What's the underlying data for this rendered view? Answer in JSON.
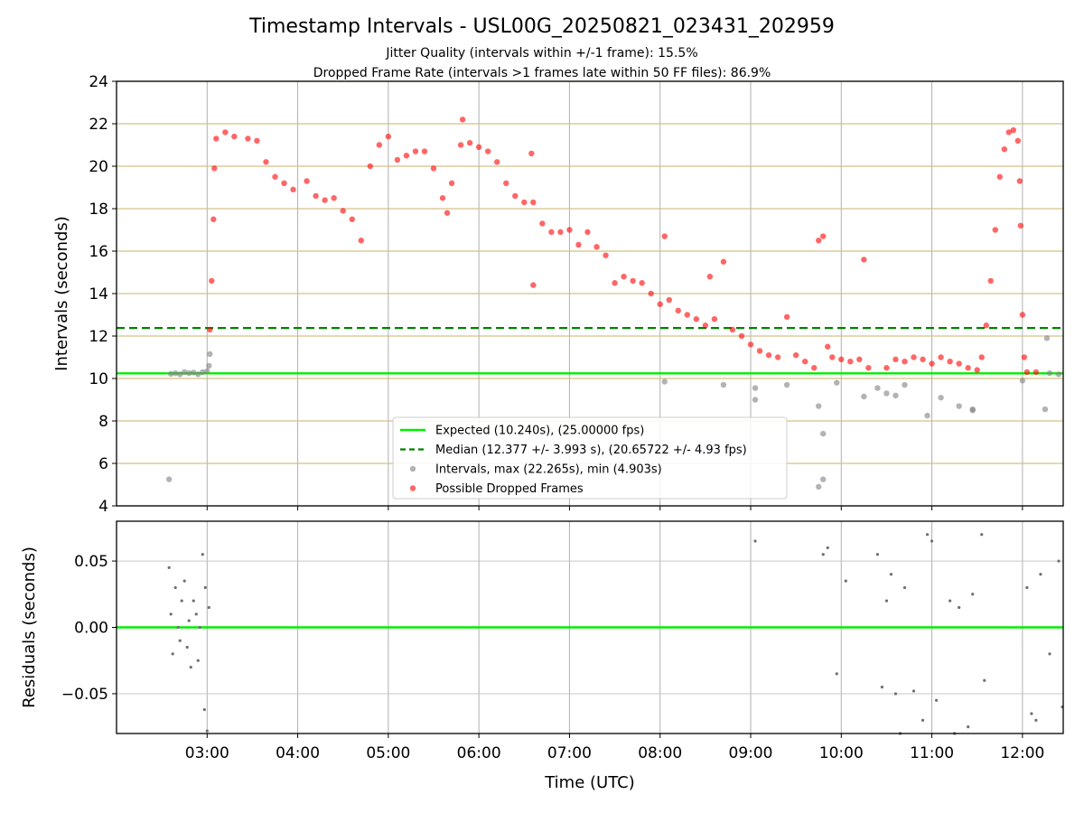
{
  "chart_data": [
    {
      "type": "scatter",
      "title": "Timestamp Intervals - USL00G_20250821_023431_202959",
      "subtitle_lines": [
        "Jitter Quality (intervals within +/-1 frame): 15.5%",
        "Dropped Frame Rate (intervals >1 frames late within 50 FF files): 86.9%"
      ],
      "ylabel": "Intervals (seconds)",
      "xlim_hours": [
        2.0,
        12.45
      ],
      "ylim": [
        4,
        24
      ],
      "yticks": [
        4,
        6,
        8,
        10,
        12,
        14,
        16,
        18,
        20,
        22,
        24
      ],
      "grid": true,
      "expected_value": 10.24,
      "median_value": 12.377,
      "legend_position": "lower center",
      "legend": [
        "Expected (10.240s), (25.00000 fps)",
        "Median (12.377 +/- 3.993 s), (20.65722 +/- 4.93 fps)",
        "Intervals, max (22.265s), min (4.903s)",
        "Possible Dropped Frames"
      ],
      "colors": {
        "expected": "#00ee00",
        "median": "#008000",
        "intervals": "#808080",
        "dropped": "#ff0000",
        "gridline_y": "#d4c088"
      },
      "series": [
        {
          "name": "Intervals, max (22.265s), min (4.903s)",
          "points": [
            [
              2.58,
              5.25
            ],
            [
              2.6,
              10.22
            ],
            [
              2.65,
              10.25
            ],
            [
              2.7,
              10.2
            ],
            [
              2.75,
              10.3
            ],
            [
              2.8,
              10.25
            ],
            [
              2.85,
              10.28
            ],
            [
              2.9,
              10.2
            ],
            [
              2.95,
              10.3
            ],
            [
              3.0,
              10.35
            ],
            [
              3.02,
              10.6
            ],
            [
              3.03,
              11.15
            ],
            [
              8.05,
              9.85
            ],
            [
              8.7,
              9.7
            ],
            [
              9.05,
              9.0
            ],
            [
              9.05,
              9.55
            ],
            [
              9.4,
              9.7
            ],
            [
              9.75,
              4.9
            ],
            [
              9.8,
              5.25
            ],
            [
              9.8,
              7.4
            ],
            [
              9.75,
              8.7
            ],
            [
              9.95,
              9.8
            ],
            [
              10.25,
              9.15
            ],
            [
              10.4,
              9.55
            ],
            [
              10.5,
              9.3
            ],
            [
              10.6,
              9.2
            ],
            [
              10.7,
              9.7
            ],
            [
              10.95,
              8.25
            ],
            [
              11.1,
              9.1
            ],
            [
              11.3,
              8.7
            ],
            [
              11.45,
              8.5
            ],
            [
              11.45,
              8.55
            ],
            [
              12.0,
              9.9
            ],
            [
              12.25,
              8.55
            ],
            [
              12.27,
              11.9
            ],
            [
              12.3,
              10.25
            ],
            [
              12.4,
              10.2
            ]
          ]
        },
        {
          "name": "Possible Dropped Frames",
          "points": [
            [
              3.03,
              12.3
            ],
            [
              3.05,
              14.6
            ],
            [
              3.07,
              17.5
            ],
            [
              3.08,
              19.9
            ],
            [
              3.1,
              21.3
            ],
            [
              3.2,
              21.6
            ],
            [
              3.3,
              21.4
            ],
            [
              3.45,
              21.3
            ],
            [
              3.55,
              21.2
            ],
            [
              3.65,
              20.2
            ],
            [
              3.75,
              19.5
            ],
            [
              3.85,
              19.2
            ],
            [
              3.95,
              18.9
            ],
            [
              4.1,
              19.3
            ],
            [
              4.2,
              18.6
            ],
            [
              4.3,
              18.4
            ],
            [
              4.4,
              18.5
            ],
            [
              4.5,
              17.9
            ],
            [
              4.6,
              17.5
            ],
            [
              4.7,
              16.5
            ],
            [
              4.8,
              20.0
            ],
            [
              4.9,
              21.0
            ],
            [
              5.0,
              21.4
            ],
            [
              5.1,
              20.3
            ],
            [
              5.2,
              20.5
            ],
            [
              5.3,
              20.7
            ],
            [
              5.4,
              20.7
            ],
            [
              5.5,
              19.9
            ],
            [
              5.6,
              18.5
            ],
            [
              5.65,
              17.8
            ],
            [
              5.7,
              19.2
            ],
            [
              5.8,
              21.0
            ],
            [
              5.82,
              22.2
            ],
            [
              5.9,
              21.1
            ],
            [
              6.0,
              20.9
            ],
            [
              6.1,
              20.7
            ],
            [
              6.2,
              20.2
            ],
            [
              6.3,
              19.2
            ],
            [
              6.4,
              18.6
            ],
            [
              6.5,
              18.3
            ],
            [
              6.58,
              20.6
            ],
            [
              6.6,
              18.3
            ],
            [
              6.6,
              14.4
            ],
            [
              6.7,
              17.3
            ],
            [
              6.8,
              16.9
            ],
            [
              6.9,
              16.9
            ],
            [
              7.0,
              17.0
            ],
            [
              7.1,
              16.3
            ],
            [
              7.2,
              16.9
            ],
            [
              7.3,
              16.2
            ],
            [
              7.4,
              15.8
            ],
            [
              7.5,
              14.5
            ],
            [
              7.6,
              14.8
            ],
            [
              7.7,
              14.6
            ],
            [
              7.8,
              14.5
            ],
            [
              7.9,
              14.0
            ],
            [
              8.0,
              13.5
            ],
            [
              8.05,
              16.7
            ],
            [
              8.1,
              13.7
            ],
            [
              8.2,
              13.2
            ],
            [
              8.3,
              13.0
            ],
            [
              8.4,
              12.8
            ],
            [
              8.5,
              12.5
            ],
            [
              8.55,
              14.8
            ],
            [
              8.6,
              12.8
            ],
            [
              8.7,
              15.5
            ],
            [
              8.8,
              12.3
            ],
            [
              8.9,
              12.0
            ],
            [
              9.0,
              11.6
            ],
            [
              9.1,
              11.3
            ],
            [
              9.2,
              11.1
            ],
            [
              9.3,
              11.0
            ],
            [
              9.4,
              12.9
            ],
            [
              9.5,
              11.1
            ],
            [
              9.6,
              10.8
            ],
            [
              9.7,
              10.5
            ],
            [
              9.75,
              16.5
            ],
            [
              9.8,
              16.7
            ],
            [
              9.85,
              11.5
            ],
            [
              9.9,
              11.0
            ],
            [
              10.0,
              10.9
            ],
            [
              10.1,
              10.8
            ],
            [
              10.2,
              10.9
            ],
            [
              10.25,
              15.6
            ],
            [
              10.3,
              10.5
            ],
            [
              10.5,
              10.5
            ],
            [
              10.6,
              10.9
            ],
            [
              10.7,
              10.8
            ],
            [
              10.8,
              11.0
            ],
            [
              10.9,
              10.9
            ],
            [
              11.0,
              10.7
            ],
            [
              11.1,
              11.0
            ],
            [
              11.2,
              10.8
            ],
            [
              11.3,
              10.7
            ],
            [
              11.4,
              10.5
            ],
            [
              11.5,
              10.4
            ],
            [
              11.55,
              11.0
            ],
            [
              11.6,
              12.5
            ],
            [
              11.65,
              14.6
            ],
            [
              11.7,
              17.0
            ],
            [
              11.75,
              19.5
            ],
            [
              11.8,
              20.8
            ],
            [
              11.85,
              21.6
            ],
            [
              11.9,
              21.7
            ],
            [
              11.95,
              21.2
            ],
            [
              11.97,
              19.3
            ],
            [
              11.98,
              17.2
            ],
            [
              12.0,
              13.0
            ],
            [
              12.02,
              11.0
            ],
            [
              12.05,
              10.3
            ],
            [
              12.15,
              10.3
            ]
          ]
        }
      ]
    },
    {
      "type": "scatter",
      "xlabel": "Time (UTC)",
      "ylabel": "Residuals (seconds)",
      "ylim": [
        -0.08,
        0.08
      ],
      "yticks": [
        -0.05,
        0.0,
        0.05
      ],
      "ytick_labels": [
        "−0.05",
        "0.00",
        "0.05"
      ],
      "xticks_hours": [
        3,
        4,
        5,
        6,
        7,
        8,
        9,
        10,
        11,
        12
      ],
      "xtick_labels": [
        "03:00",
        "04:00",
        "05:00",
        "06:00",
        "07:00",
        "08:00",
        "09:00",
        "10:00",
        "11:00",
        "12:00"
      ],
      "grid": true,
      "zero_line": 0.0,
      "colors": {
        "residuals": "#707070",
        "zero": "#00ee00"
      },
      "series": [
        {
          "name": "",
          "points": [
            [
              2.58,
              0.045
            ],
            [
              2.6,
              0.01
            ],
            [
              2.62,
              -0.02
            ],
            [
              2.65,
              0.03
            ],
            [
              2.68,
              0.0
            ],
            [
              2.7,
              -0.01
            ],
            [
              2.72,
              0.02
            ],
            [
              2.75,
              0.035
            ],
            [
              2.78,
              -0.015
            ],
            [
              2.8,
              0.005
            ],
            [
              2.82,
              -0.03
            ],
            [
              2.85,
              0.02
            ],
            [
              2.88,
              0.01
            ],
            [
              2.9,
              -0.025
            ],
            [
              2.92,
              0.0
            ],
            [
              2.95,
              0.055
            ],
            [
              2.97,
              -0.062
            ],
            [
              2.98,
              0.03
            ],
            [
              3.0,
              -0.078
            ],
            [
              3.02,
              0.015
            ],
            [
              9.05,
              0.065
            ],
            [
              9.8,
              0.055
            ],
            [
              9.85,
              0.06
            ],
            [
              9.95,
              -0.035
            ],
            [
              10.05,
              0.035
            ],
            [
              10.4,
              0.055
            ],
            [
              10.45,
              -0.045
            ],
            [
              10.5,
              0.02
            ],
            [
              10.55,
              0.04
            ],
            [
              10.6,
              -0.05
            ],
            [
              10.65,
              -0.08
            ],
            [
              10.7,
              0.03
            ],
            [
              10.8,
              -0.048
            ],
            [
              10.9,
              -0.07
            ],
            [
              10.95,
              0.07
            ],
            [
              11.0,
              0.065
            ],
            [
              11.05,
              -0.055
            ],
            [
              11.2,
              0.02
            ],
            [
              11.25,
              -0.08
            ],
            [
              11.3,
              0.015
            ],
            [
              11.4,
              -0.075
            ],
            [
              11.45,
              0.025
            ],
            [
              11.55,
              0.07
            ],
            [
              11.58,
              -0.04
            ],
            [
              12.05,
              0.03
            ],
            [
              12.1,
              -0.065
            ],
            [
              12.15,
              -0.07
            ],
            [
              12.2,
              0.04
            ],
            [
              12.3,
              -0.02
            ],
            [
              12.4,
              0.05
            ],
            [
              12.44,
              -0.06
            ]
          ]
        }
      ]
    }
  ]
}
